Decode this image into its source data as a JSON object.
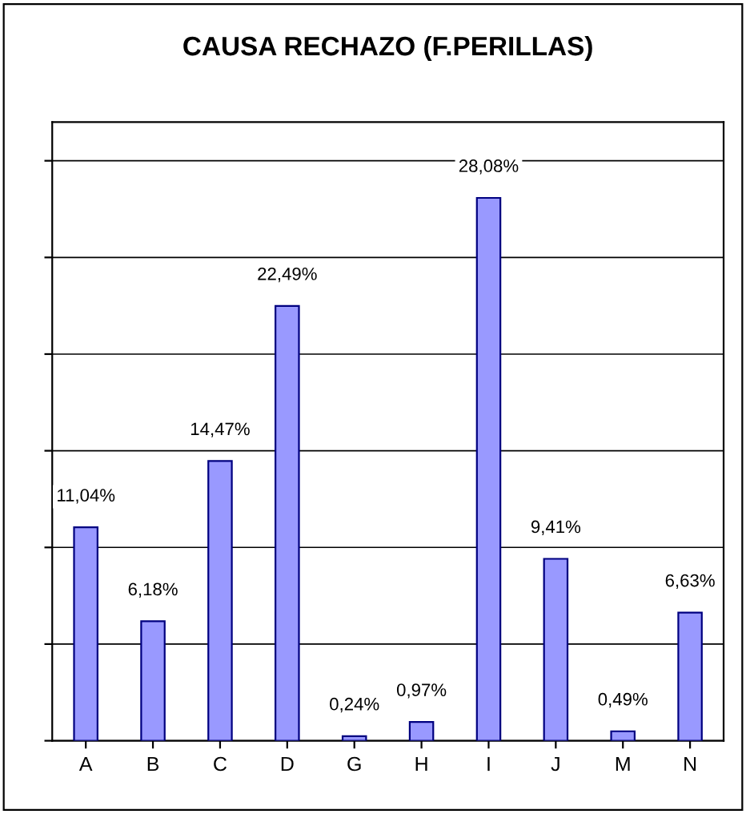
{
  "chart_data": {
    "type": "bar",
    "title": "CAUSA RECHAZO (F.PERILLAS)",
    "categories": [
      "A",
      "B",
      "C",
      "D",
      "G",
      "H",
      "I",
      "J",
      "M",
      "N"
    ],
    "values": [
      11.04,
      6.18,
      14.47,
      22.49,
      0.24,
      0.97,
      28.08,
      9.41,
      0.49,
      6.63
    ],
    "value_labels": [
      "11,04%",
      "6,18%",
      "14,47%",
      "22,49%",
      "0,24%",
      "0,97%",
      "28,08%",
      "9,41%",
      "0,49%",
      "6,63%"
    ],
    "color": "#9999ff",
    "ylim": [
      0,
      32
    ],
    "yticks": [
      {
        "value": 0,
        "label": null
      },
      {
        "value": 5,
        "label": null
      },
      {
        "value": 10,
        "label": null
      },
      {
        "value": 15,
        "label": null
      },
      {
        "value": 20,
        "label": null
      },
      {
        "value": 25,
        "label": null
      },
      {
        "value": 30,
        "label": null
      }
    ],
    "grid": "y",
    "tick_labels": "x"
  }
}
